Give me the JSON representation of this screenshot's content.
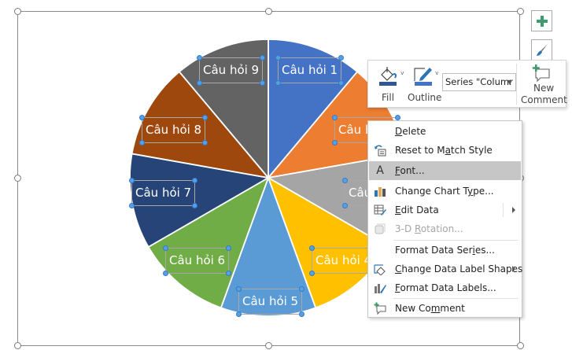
{
  "chart": {
    "labels": [
      "Câu hỏi 1",
      "Câu hỏi 2",
      "Câu hỏi 3",
      "Câu hỏi 4",
      "Câu hỏi 5",
      "Câu hỏi 6",
      "Câu hỏi 7",
      "Câu hỏi 8",
      "Câu hỏi 9"
    ],
    "colors": [
      "#4472c4",
      "#ed7d31",
      "#a5a5a5",
      "#ffc000",
      "#5b9bd5",
      "#70ad47",
      "#264478",
      "#9e480e",
      "#636363"
    ]
  },
  "chart_data": {
    "type": "pie",
    "title": "",
    "categories": [
      "Câu hỏi 1",
      "Câu hỏi 2",
      "Câu hỏi 3",
      "Câu hỏi 4",
      "Câu hỏi 5",
      "Câu hỏi 6",
      "Câu hỏi 7",
      "Câu hỏi 8",
      "Câu hỏi 9"
    ],
    "values": [
      1,
      1,
      1,
      1,
      1,
      1,
      1,
      1,
      1
    ],
    "series_name": "Series \"Column…\"",
    "legend": "none",
    "data_labels": "category name"
  },
  "side_buttons": {
    "add_element": "chart-elements",
    "styles": "chart-styles"
  },
  "mini_toolbar": {
    "fill_label": "Fill",
    "outline_label": "Outline",
    "series_value": "Series \"Columr",
    "new_comment_line1": "New",
    "new_comment_line2": "Comment"
  },
  "context_menu": {
    "items": [
      {
        "label": "Delete",
        "u": "D"
      },
      {
        "label": "Reset to Match Style"
      },
      {
        "label": "Font...",
        "u": "F"
      },
      {
        "label": "Change Chart Type..."
      },
      {
        "label": "Edit Data",
        "u": "E"
      },
      {
        "label": "3-D Rotation..."
      },
      {
        "label": "Format Data Series..."
      },
      {
        "label": "Change Data Label Shapes",
        "u": "C"
      },
      {
        "label": "Format Data Labels...",
        "u": "F"
      },
      {
        "label": "New Comment"
      }
    ]
  }
}
